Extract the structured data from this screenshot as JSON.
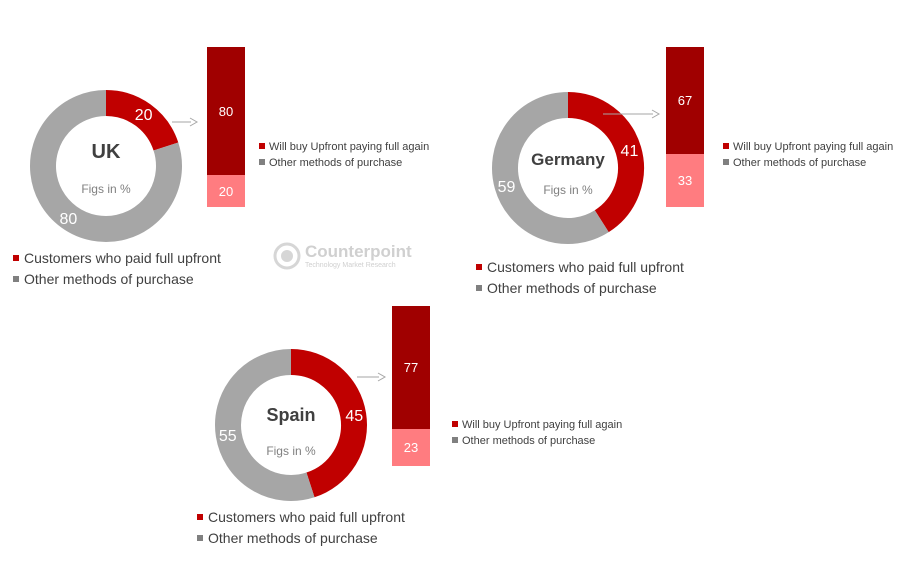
{
  "chart_data": [
    {
      "type": "donut",
      "title": "UK",
      "subtitle": "Figs in %",
      "slices": [
        {
          "label": "Customers who paid full upfront",
          "value": 20,
          "color": "#c00000"
        },
        {
          "label": "Other methods of purchase",
          "value": 80,
          "color": "#a6a6a6"
        }
      ],
      "breakdown": {
        "type": "stacked-bar",
        "segments": [
          {
            "label": "Will buy Upfront paying full again",
            "value": 80,
            "color": "#a00000"
          },
          {
            "label": "Other methods of purchase",
            "value": 20,
            "color": "#ff7c80"
          }
        ]
      }
    },
    {
      "type": "donut",
      "title": "Germany",
      "subtitle": "Figs in %",
      "slices": [
        {
          "label": "Customers who paid full upfront",
          "value": 41,
          "color": "#c00000"
        },
        {
          "label": "Other methods of purchase",
          "value": 59,
          "color": "#a6a6a6"
        }
      ],
      "breakdown": {
        "type": "stacked-bar",
        "segments": [
          {
            "label": "Will buy Upfront paying full again",
            "value": 67,
            "color": "#a00000"
          },
          {
            "label": "Other methods of purchase",
            "value": 33,
            "color": "#ff7c80"
          }
        ]
      }
    },
    {
      "type": "donut",
      "title": "Spain",
      "subtitle": "Figs in %",
      "slices": [
        {
          "label": "Customers who paid full upfront",
          "value": 45,
          "color": "#c00000"
        },
        {
          "label": "Other methods of purchase",
          "value": 55,
          "color": "#a6a6a6"
        }
      ],
      "breakdown": {
        "type": "stacked-bar",
        "segments": [
          {
            "label": "Will buy Upfront paying full again",
            "value": 77,
            "color": "#a00000"
          },
          {
            "label": "Other methods of purchase",
            "value": 23,
            "color": "#ff7c80"
          }
        ]
      }
    }
  ],
  "watermark": {
    "name": "Counterpoint",
    "tagline": "Technology Market Research"
  }
}
